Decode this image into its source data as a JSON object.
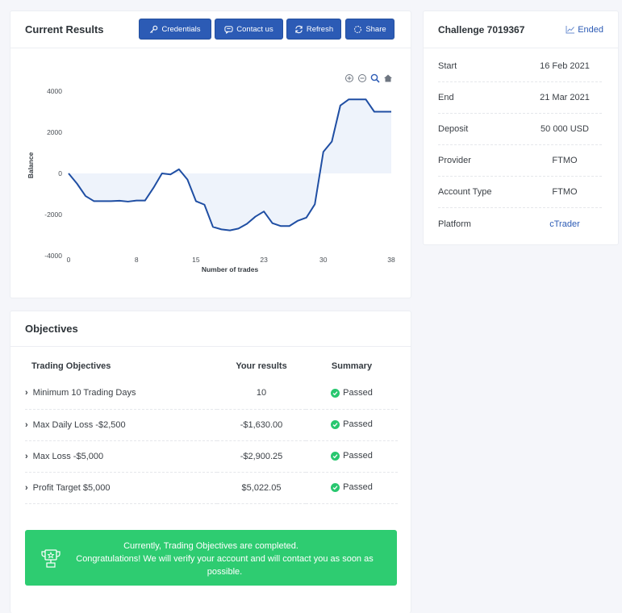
{
  "results_card": {
    "title": "Current Results",
    "buttons": {
      "credentials": "Credentials",
      "contact": "Contact us",
      "refresh": "Refresh",
      "share": "Share"
    }
  },
  "chart_data": {
    "type": "area",
    "ylabel": "Balance",
    "xlabel": "Number of trades",
    "ylim": [
      -4000,
      4000
    ],
    "xlim": [
      0,
      38
    ],
    "yticks": [
      4000,
      2000,
      0,
      -2000,
      -4000
    ],
    "xticks": [
      0,
      8,
      15,
      23,
      30,
      38
    ],
    "x": [
      0,
      1,
      2,
      3,
      4,
      5,
      6,
      7,
      8,
      9,
      10,
      11,
      12,
      13,
      14,
      15,
      16,
      17,
      18,
      19,
      20,
      21,
      22,
      23,
      24,
      25,
      26,
      27,
      28,
      29,
      30,
      31,
      32,
      33,
      34,
      35,
      36,
      37,
      38
    ],
    "y": [
      0,
      -500,
      -1100,
      -1350,
      -1350,
      -1350,
      -1330,
      -1370,
      -1320,
      -1320,
      -700,
      0,
      -50,
      200,
      -300,
      -1350,
      -1520,
      -2600,
      -2720,
      -2770,
      -2680,
      -2450,
      -2100,
      -1850,
      -2420,
      -2560,
      -2560,
      -2300,
      -2150,
      -1500,
      1050,
      1550,
      3300,
      3600,
      3600,
      3600,
      3000,
      3000,
      3000
    ],
    "colors": {
      "line": "#1f4ea3",
      "fill": "#eef3fb"
    }
  },
  "challenge_card": {
    "title": "Challenge 7019367",
    "status": "Ended",
    "rows": [
      {
        "label": "Start",
        "value": "16 Feb 2021"
      },
      {
        "label": "End",
        "value": "21 Mar 2021"
      },
      {
        "label": "Deposit",
        "value": "50 000 USD"
      },
      {
        "label": "Provider",
        "value": "FTMO"
      },
      {
        "label": "Account Type",
        "value": "FTMO"
      },
      {
        "label": "Platform",
        "value": "cTrader"
      }
    ]
  },
  "objectives_card": {
    "title": "Objectives",
    "headers": {
      "objective": "Trading Objectives",
      "results": "Your results",
      "summary": "Summary"
    },
    "rows": [
      {
        "objective": "Minimum 10 Trading Days",
        "result": "10",
        "summary": "Passed"
      },
      {
        "objective": "Max Daily Loss -$2,500",
        "result": "-$1,630.00",
        "summary": "Passed"
      },
      {
        "objective": "Max Loss -$5,000",
        "result": "-$2,900.25",
        "summary": "Passed"
      },
      {
        "objective": "Profit Target $5,000",
        "result": "$5,022.05",
        "summary": "Passed"
      }
    ],
    "banner": {
      "line1": "Currently, Trading Objectives are completed.",
      "line2": "Congratulations! We will verify your account and will contact you as soon as possible."
    }
  },
  "colors": {
    "accent": "#2c5bb5",
    "success": "#2ecc71",
    "link": "#2c5bb5"
  }
}
